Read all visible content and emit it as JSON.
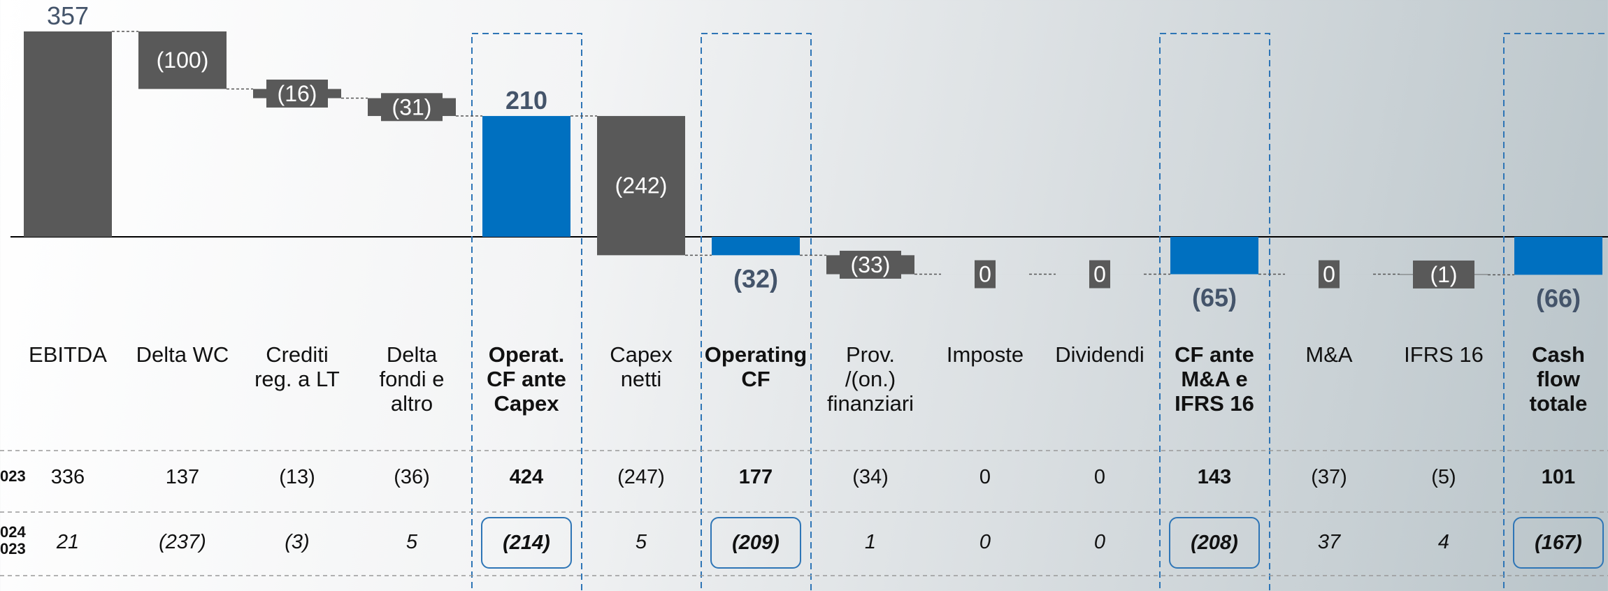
{
  "chart_data": {
    "type": "waterfall",
    "categories": [
      "EBITDA",
      "Delta WC",
      "Crediti\nreg. a LT",
      "Delta\nfondi e\naltro",
      "Operat.\nCF ante\nCapex",
      "Capex\nnetti",
      "Operating\nCF",
      "Prov.\n/(on.)\nfinanziari",
      "Imposte",
      "Dividendi",
      "CF ante\nM&A e\nIFRS 16",
      "M&A",
      "IFRS 16",
      "Cash\nflow\ntotale"
    ],
    "values": [
      357,
      -100,
      -16,
      -31,
      210,
      -242,
      -32,
      -33,
      0,
      0,
      -65,
      0,
      -1,
      -66
    ],
    "value_labels": [
      "357",
      "(100)",
      "(16)",
      "(31)",
      "210",
      "(242)",
      "(32)",
      "(33)",
      "0",
      "0",
      "(65)",
      "0",
      "(1)",
      "(66)"
    ],
    "is_total": [
      false,
      false,
      false,
      false,
      true,
      false,
      true,
      false,
      false,
      false,
      true,
      false,
      false,
      true
    ],
    "colors": {
      "step": "#595959",
      "total": "#0070c0"
    },
    "table": {
      "row_labels": [
        "023",
        "024\n023"
      ],
      "rows": [
        [
          "336",
          "137",
          "(13)",
          "(36)",
          "424",
          "(247)",
          "177",
          "(34)",
          "0",
          "0",
          "143",
          "(37)",
          "(5)",
          "101"
        ],
        [
          "21",
          "(237)",
          "(3)",
          "5",
          "(214)",
          "5",
          "(209)",
          "1",
          "0",
          "0",
          "(208)",
          "37",
          "4",
          "(167)"
        ]
      ]
    }
  }
}
